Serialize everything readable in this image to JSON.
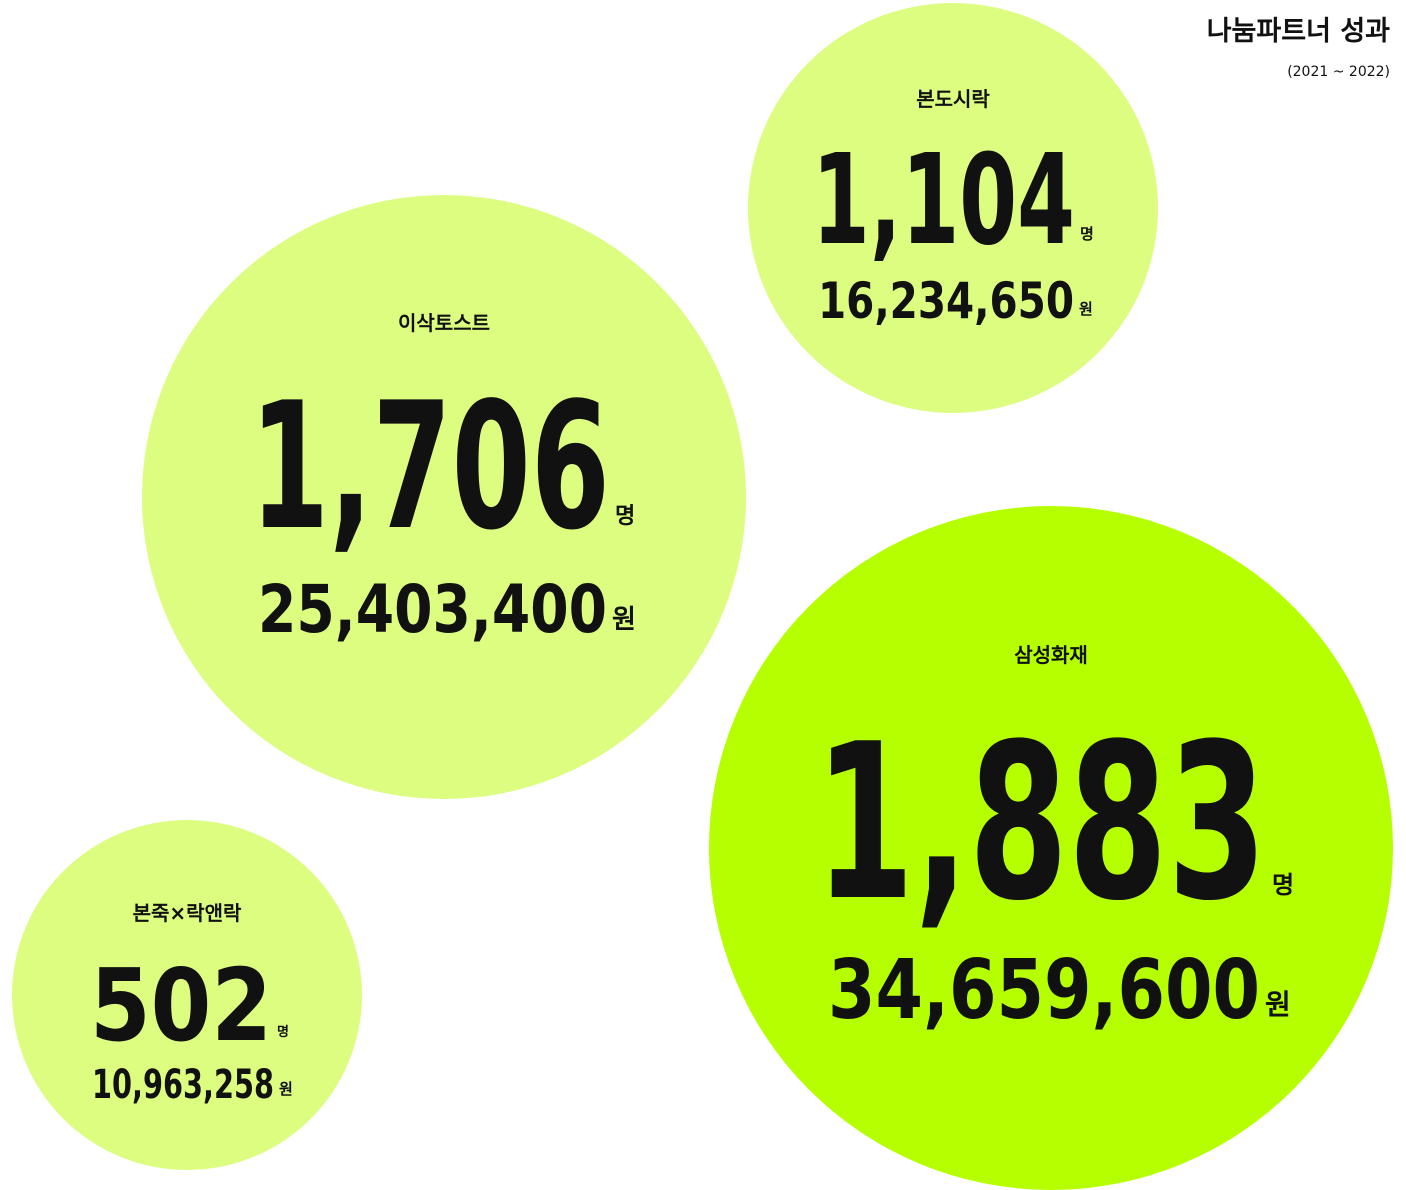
{
  "header": {
    "title": "나눔파트너 성과",
    "subtitle": "(2021 ~ 2022)"
  },
  "bubbles": [
    {
      "name": "본도시락",
      "count": "1,104",
      "count_unit": "명",
      "amount": "16,234,650",
      "amount_unit": "원"
    },
    {
      "name": "이삭토스트",
      "count": "1,706",
      "count_unit": "명",
      "amount": "25,403,400",
      "amount_unit": "원"
    },
    {
      "name": "삼성화재",
      "count": "1,883",
      "count_unit": "명",
      "amount": "34,659,600",
      "amount_unit": "원"
    },
    {
      "name": "본죽×락앤락",
      "count": "502",
      "count_unit": "명",
      "amount": "10,963,258",
      "amount_unit": "원"
    }
  ]
}
